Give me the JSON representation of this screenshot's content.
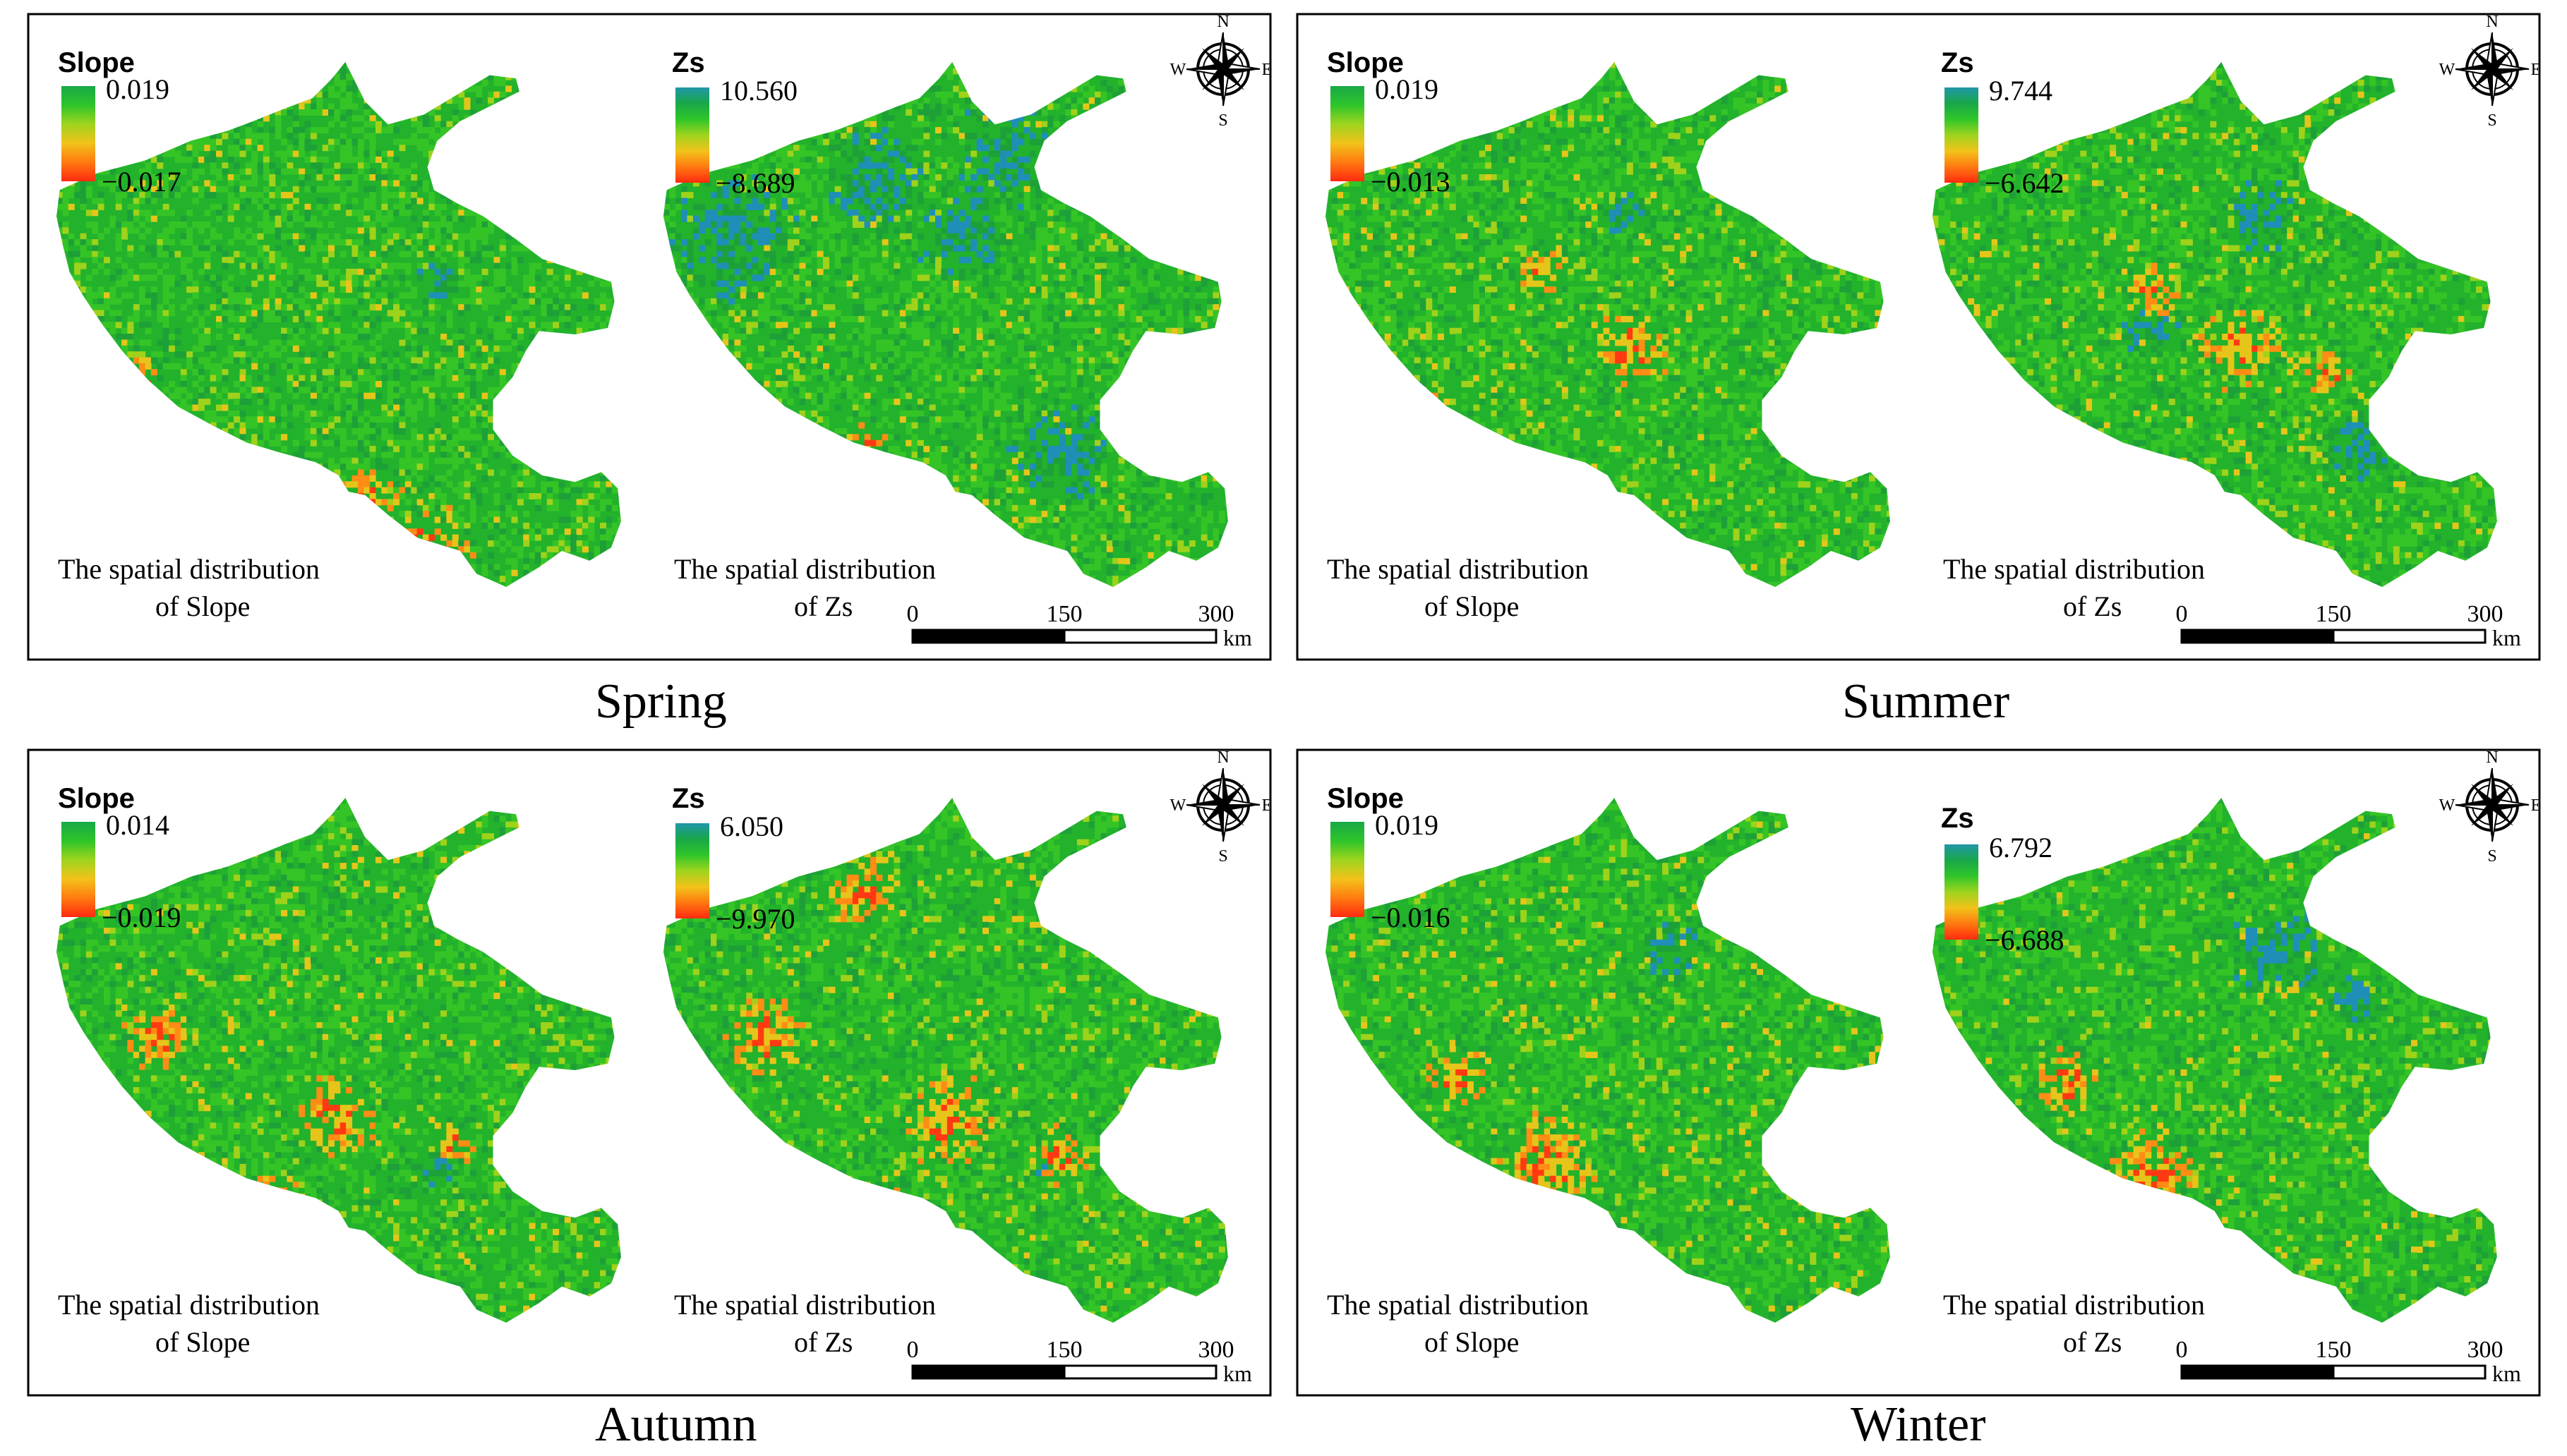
{
  "legend_colors": [
    "#2196a8",
    "#18a848",
    "#2ec52a",
    "#9ed41e",
    "#f2c21a",
    "#ff7a10",
    "#ff2a10"
  ],
  "map_palette": [
    "#22b22c",
    "#35c426",
    "#1ea038",
    "#9fd21a",
    "#e6c51a",
    "#ff8c15",
    "#ff3a12",
    "#1f8fb8"
  ],
  "compass": {
    "n": "N",
    "s": "S",
    "e": "E",
    "w": "W"
  },
  "scale": {
    "ticks": [
      "0",
      "150",
      "300"
    ],
    "unit": "km"
  },
  "panels": [
    {
      "season": "Spring",
      "slope": {
        "title": "Slope",
        "max": "0.019",
        "min": "−0.017",
        "caption_line1": "The spatial distribution",
        "caption_line2": "of Slope"
      },
      "zs": {
        "title": "Zs",
        "max": "10.560",
        "min": "−8.689",
        "caption_line1": "The spatial distribution",
        "caption_line2": "of Zs"
      }
    },
    {
      "season": "Summer",
      "slope": {
        "title": "Slope",
        "max": "0.019",
        "min": "−0.013",
        "caption_line1": "The spatial distribution",
        "caption_line2": "of Slope"
      },
      "zs": {
        "title": "Zs",
        "max": "9.744",
        "min": "−6.642",
        "caption_line1": "The spatial distribution",
        "caption_line2": "of Zs"
      }
    },
    {
      "season": "Autumn",
      "slope": {
        "title": "Slope",
        "max": "0.014",
        "min": "−0.019",
        "caption_line1": "The spatial distribution",
        "caption_line2": "of Slope"
      },
      "zs": {
        "title": "Zs",
        "max": "6.050",
        "min": "−9.970",
        "caption_line1": "The spatial distribution",
        "caption_line2": "of Zs"
      }
    },
    {
      "season": "Winter",
      "slope": {
        "title": "Slope",
        "max": "0.019",
        "min": "−0.016",
        "caption_line1": "The spatial distribution",
        "caption_line2": "of Slope"
      },
      "zs": {
        "title": "Zs",
        "max": "6.792",
        "min": "−6.688",
        "caption_line1": "The spatial distribution",
        "caption_line2": "of Zs"
      }
    }
  ]
}
